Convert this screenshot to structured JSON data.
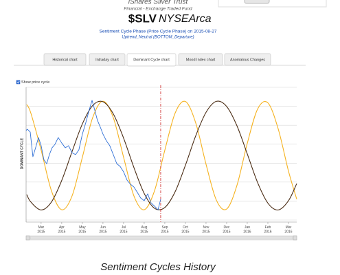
{
  "header": {
    "title": "iShares Silver Trust",
    "subtitle": "Financial - Exchange Traded Fund",
    "ticker": "$SLV",
    "exchange": "NYSEArca",
    "phase_link": "Sentiment Cycle Phase (Price Cycle Phase) on 2015-08-27",
    "phase_state": "Uptrend_Neutral (BOTTOM_Departure)"
  },
  "tabs": [
    {
      "label": "Historical chart",
      "active": false
    },
    {
      "label": "Intraday chart",
      "active": false
    },
    {
      "label": "Dominant Cycle chart",
      "active": true
    },
    {
      "label": "Mood Index chart",
      "active": false
    },
    {
      "label": "Anomalous Changes",
      "active": false
    }
  ],
  "checkbox": {
    "label": "Show price cycle",
    "checked": true
  },
  "chart_data": {
    "type": "line",
    "ylabel": "DOMINANT CYCLE",
    "xlim": [
      -0.73,
      12.4
    ],
    "ylim": [
      0,
      7
    ],
    "gridlines": [
      0,
      1,
      2,
      3,
      4,
      5,
      6,
      7
    ],
    "xticks": [
      {
        "value": 0,
        "label": "Mar 2015"
      },
      {
        "value": 1,
        "label": "Apr 2015"
      },
      {
        "value": 2,
        "label": "May 2015"
      },
      {
        "value": 3,
        "label": "Jun 2015"
      },
      {
        "value": 4,
        "label": "Jul 2015"
      },
      {
        "value": 5,
        "label": "Aug 2015"
      },
      {
        "value": 6,
        "label": "Sep 2015"
      },
      {
        "value": 7,
        "label": "Oct 2015"
      },
      {
        "value": 8,
        "label": "Nov 2015"
      },
      {
        "value": 9,
        "label": "Dec 2015"
      },
      {
        "value": 10,
        "label": "Jan 2016"
      },
      {
        "value": 11,
        "label": "Feb 2016"
      },
      {
        "value": 12,
        "label": "Mar 2016"
      }
    ],
    "current_x": 5.8,
    "current_color": "#cc2222",
    "series": [
      {
        "color": "#f5b21f",
        "x": [
          -0.7,
          -0.5,
          0,
          0.5,
          1,
          1.5,
          2,
          2.5,
          3,
          3.5,
          4,
          4.5,
          5,
          5.5,
          6,
          6.5,
          7,
          7.5,
          8,
          8.5,
          9,
          9.5,
          10,
          10.5,
          11,
          11.5,
          12,
          12.4
        ],
        "values": [
          6.09,
          5.64,
          3.68,
          1.54,
          0.54,
          1.27,
          3.31,
          5.4,
          6.27,
          5.4,
          3.31,
          1.27,
          0.54,
          1.54,
          3.68,
          5.64,
          6.25,
          5.12,
          2.94,
          1.05,
          0.58,
          1.83,
          4.04,
          5.85,
          6.18,
          4.81,
          2.58,
          1.1
        ]
      },
      {
        "color": "#4a2c14",
        "x": [
          -0.7,
          -0.5,
          0,
          0.5,
          1,
          1.5,
          2,
          2.5,
          3,
          3.5,
          4,
          4.5,
          5,
          5.5,
          6,
          6.5,
          7,
          7.5,
          8,
          8.5,
          9,
          9.5,
          10,
          10.5,
          11,
          11.5,
          12,
          12.4
        ],
        "values": [
          1.34,
          0.95,
          0.53,
          0.95,
          2.09,
          3.61,
          5.07,
          6.04,
          6.24,
          5.6,
          4.32,
          2.77,
          1.4,
          0.62,
          0.66,
          1.49,
          2.89,
          4.44,
          5.68,
          6.26,
          5.99,
          4.97,
          3.49,
          1.98,
          0.89,
          0.53,
          1.02,
          1.92
        ]
      },
      {
        "color": "#2f6fd6",
        "x": [
          -0.73,
          -0.67,
          -0.53,
          -0.4,
          -0.27,
          -0.13,
          0,
          0.13,
          0.27,
          0.4,
          0.53,
          0.67,
          0.83,
          1,
          1.17,
          1.33,
          1.5,
          1.67,
          1.83,
          2,
          2.17,
          2.33,
          2.47,
          2.6,
          2.73,
          2.87,
          3,
          3.17,
          3.33,
          3.5,
          3.67,
          3.83,
          4,
          4.17,
          4.33,
          4.5,
          4.67,
          4.83,
          5,
          5.17,
          5.33,
          5.5,
          5.67,
          5.8
        ],
        "values": [
          4.72,
          4.79,
          4.64,
          3.34,
          3.81,
          4.35,
          3.92,
          3.19,
          2.97,
          3.45,
          3.81,
          3.99,
          4.35,
          4.06,
          3.81,
          3.92,
          3.55,
          3.45,
          3.7,
          4.53,
          5.15,
          5.8,
          6.31,
          5.8,
          5.26,
          4.9,
          4.53,
          4.17,
          3.92,
          3.45,
          2.97,
          2.83,
          2.54,
          2.1,
          1.89,
          1.74,
          1.45,
          1.16,
          1.02,
          1.38,
          0.91,
          0.73,
          0.54,
          1.09
        ]
      }
    ]
  },
  "section_title": "Sentiment Cycles History"
}
